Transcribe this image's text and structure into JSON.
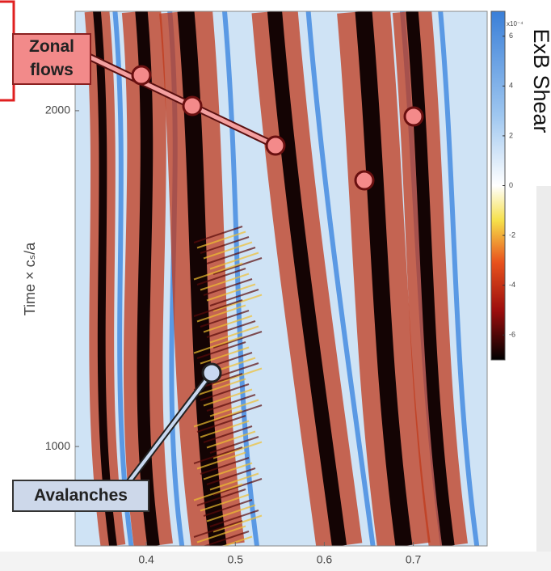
{
  "chart_data": {
    "type": "heatmap",
    "y_label": "Time × cₛ/a",
    "xlim": [
      0.32,
      0.783
    ],
    "xticks": [
      0.4,
      0.5,
      0.6,
      0.7
    ],
    "ylim": [
      704,
      2296
    ],
    "yticks": [
      1000,
      2000
    ],
    "colorbar": {
      "label": "ExB Shear",
      "multiplier": "x10⁻⁴",
      "lim": [
        -7,
        7
      ],
      "ticks": [
        6,
        4,
        2,
        0,
        -2,
        -4,
        -6
      ]
    },
    "annotations": [
      {
        "label": "Zonal flows"
      },
      {
        "label": "Avalanches"
      }
    ]
  }
}
